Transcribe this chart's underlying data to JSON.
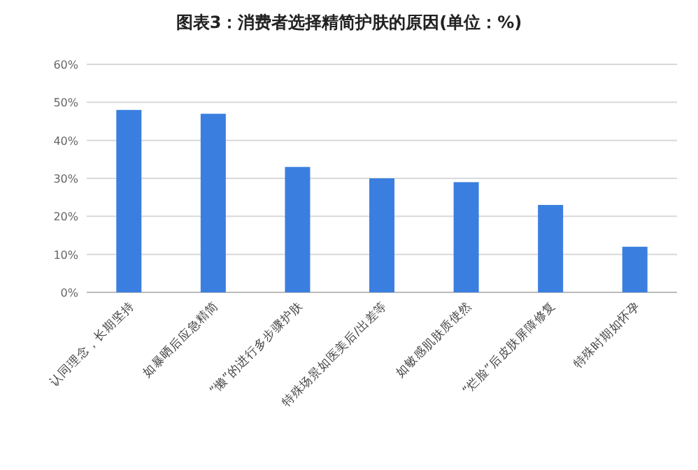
{
  "chart_data": {
    "type": "bar",
    "title": "图表3：消费者选择精简护肤的原因(单位：%)",
    "categories": [
      "认同理念，长期坚持",
      "如暴晒后应急精简",
      "“懒”的进行多步骤护肤",
      "特殊场景如医美后/出差等",
      "如敏感肌肤质使然",
      "“烂脸”后皮肤屏障修复",
      "特殊时期如怀孕"
    ],
    "values": [
      48,
      47,
      33,
      30,
      29,
      23,
      12
    ],
    "color": "#3a7fe0",
    "ylim": [
      0,
      60
    ],
    "yticks": [
      {
        "value": 0,
        "label": "0%"
      },
      {
        "value": 10,
        "label": "10%"
      },
      {
        "value": 20,
        "label": "20%"
      },
      {
        "value": 30,
        "label": "30%"
      },
      {
        "value": 40,
        "label": "40%"
      },
      {
        "value": 50,
        "label": "50%"
      },
      {
        "value": 60,
        "label": "60%"
      }
    ],
    "grid": "y"
  }
}
